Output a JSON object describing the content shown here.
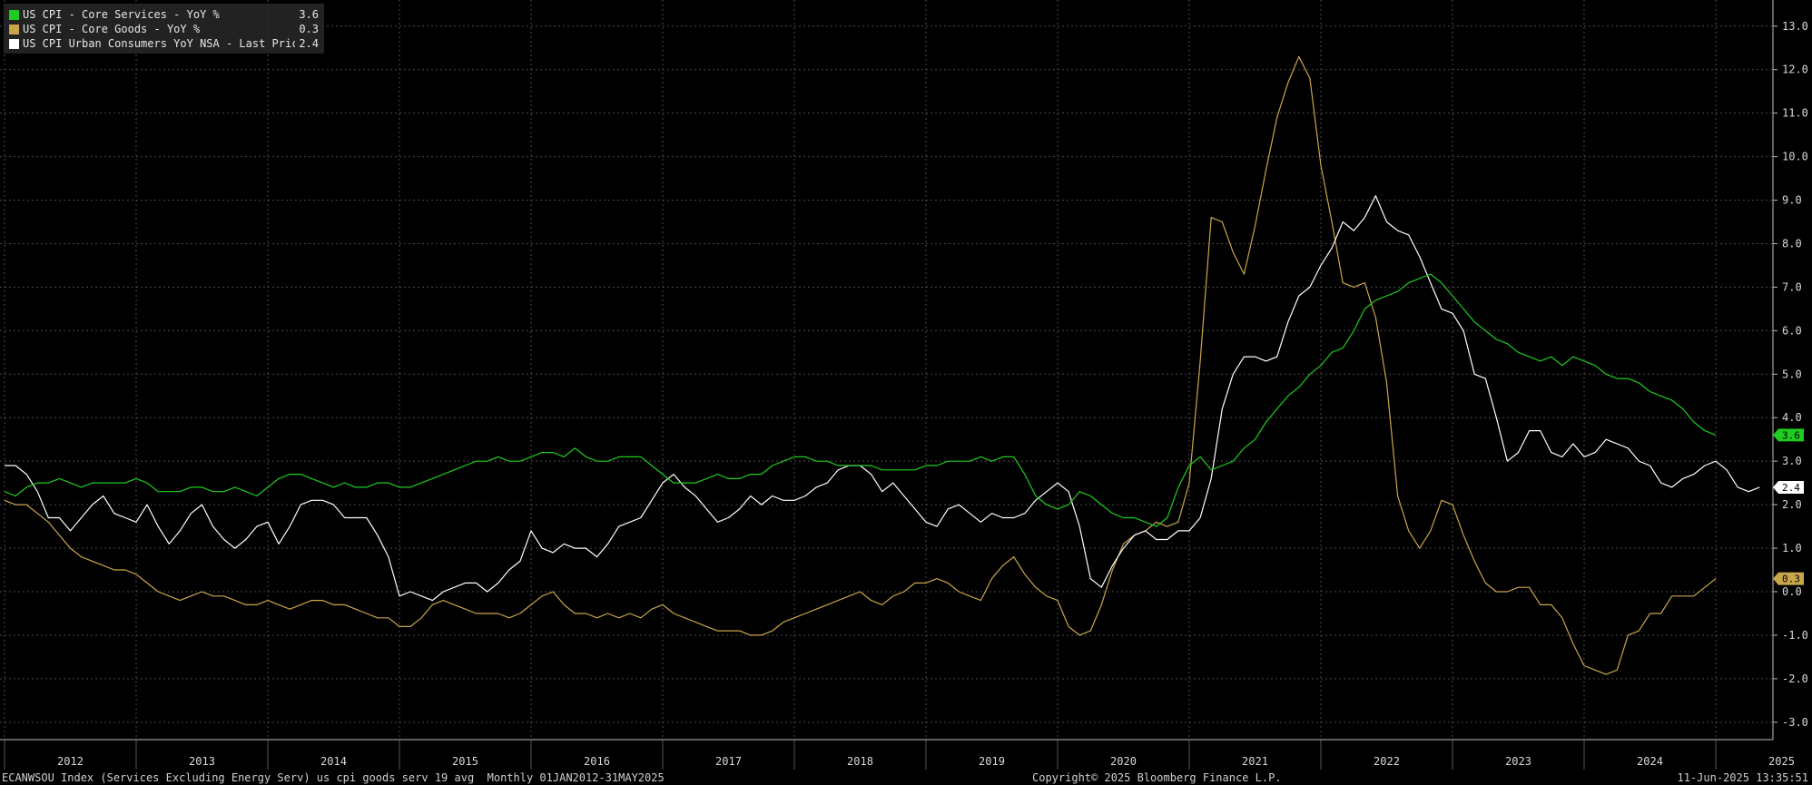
{
  "legend": [
    {
      "name": "US CPI - Core Services - YoY %",
      "value": "3.6",
      "color": "#1fcc1f"
    },
    {
      "name": "US CPI - Core Goods - YoY %",
      "value": "0.3",
      "color": "#c9a64a"
    },
    {
      "name": "US CPI Urban Consumers YoY NSA - Last Price",
      "value": "2.4",
      "color": "#ffffff"
    }
  ],
  "footer": {
    "left": "ECANWSOU Index (Services Excluding Energy Serv) us cpi goods serv 19 avg  Monthly 01JAN2012-31MAY2025",
    "center": "Copyright© 2025 Bloomberg Finance L.P.",
    "right": "11-Jun-2025 13:35:51"
  },
  "chart_data": {
    "type": "line",
    "start": "2012-01",
    "frequency": "monthly",
    "x_tick_labels": [
      "2012",
      "2013",
      "2014",
      "2015",
      "2016",
      "2017",
      "2018",
      "2019",
      "2020",
      "2021",
      "2022",
      "2023",
      "2024",
      "2025"
    ],
    "y_ticks": [
      -3,
      -2,
      -1,
      0,
      1,
      2,
      3,
      4,
      5,
      6,
      7,
      8,
      9,
      10,
      11,
      12,
      13
    ],
    "y_tick_labels": [
      "-3.0",
      "-2.0",
      "-1.0",
      "0.0",
      "1.0",
      "2.0",
      "3.0",
      "4.0",
      "5.0",
      "6.0",
      "7.0",
      "8.0",
      "9.0",
      "10.0",
      "11.0",
      "12.0",
      "13.0"
    ],
    "ylim": [
      -3.4,
      13.6
    ],
    "grid": true,
    "legend_position": "top-left",
    "series": [
      {
        "name": "US CPI - Core Services - YoY %",
        "color": "#1fcc1f",
        "last_label": "3.6",
        "values": [
          2.3,
          2.2,
          2.4,
          2.5,
          2.5,
          2.6,
          2.5,
          2.4,
          2.5,
          2.5,
          2.5,
          2.5,
          2.6,
          2.5,
          2.3,
          2.3,
          2.3,
          2.4,
          2.4,
          2.3,
          2.3,
          2.4,
          2.3,
          2.2,
          2.4,
          2.6,
          2.7,
          2.7,
          2.6,
          2.5,
          2.4,
          2.5,
          2.4,
          2.4,
          2.5,
          2.5,
          2.4,
          2.4,
          2.5,
          2.6,
          2.7,
          2.8,
          2.9,
          3.0,
          3.0,
          3.1,
          3.0,
          3.0,
          3.1,
          3.2,
          3.2,
          3.1,
          3.3,
          3.1,
          3.0,
          3.0,
          3.1,
          3.1,
          3.1,
          2.9,
          2.7,
          2.5,
          2.5,
          2.5,
          2.6,
          2.7,
          2.6,
          2.6,
          2.7,
          2.7,
          2.9,
          3.0,
          3.1,
          3.1,
          3.0,
          3.0,
          2.9,
          2.9,
          2.9,
          2.9,
          2.8,
          2.8,
          2.8,
          2.8,
          2.9,
          2.9,
          3.0,
          3.0,
          3.0,
          3.1,
          3.0,
          3.1,
          3.1,
          2.7,
          2.2,
          2.0,
          1.9,
          2.0,
          2.3,
          2.2,
          2.0,
          1.8,
          1.7,
          1.7,
          1.6,
          1.5,
          1.7,
          2.4,
          2.9,
          3.1,
          2.8,
          2.9,
          3.0,
          3.3,
          3.5,
          3.9,
          4.2,
          4.5,
          4.7,
          5.0,
          5.2,
          5.5,
          5.6,
          6.0,
          6.5,
          6.7,
          6.8,
          6.9,
          7.1,
          7.2,
          7.3,
          7.1,
          6.8,
          6.5,
          6.2,
          6.0,
          5.8,
          5.7,
          5.5,
          5.4,
          5.3,
          5.4,
          5.2,
          5.4,
          5.3,
          5.2,
          5.0,
          4.9,
          4.9,
          4.8,
          4.6,
          4.5,
          4.4,
          4.2,
          3.9,
          3.7,
          3.6
        ]
      },
      {
        "name": "US CPI - Core Goods - YoY %",
        "color": "#c9a64a",
        "last_label": "0.3",
        "values": [
          2.1,
          2.0,
          2.0,
          1.8,
          1.6,
          1.3,
          1.0,
          0.8,
          0.7,
          0.6,
          0.5,
          0.5,
          0.4,
          0.2,
          0.0,
          -0.1,
          -0.2,
          -0.1,
          0.0,
          -0.1,
          -0.1,
          -0.2,
          -0.3,
          -0.3,
          -0.2,
          -0.3,
          -0.4,
          -0.3,
          -0.2,
          -0.2,
          -0.3,
          -0.3,
          -0.4,
          -0.5,
          -0.6,
          -0.6,
          -0.8,
          -0.8,
          -0.6,
          -0.3,
          -0.2,
          -0.3,
          -0.4,
          -0.5,
          -0.5,
          -0.5,
          -0.6,
          -0.5,
          -0.3,
          -0.1,
          0.0,
          -0.3,
          -0.5,
          -0.5,
          -0.6,
          -0.5,
          -0.6,
          -0.5,
          -0.6,
          -0.4,
          -0.3,
          -0.5,
          -0.6,
          -0.7,
          -0.8,
          -0.9,
          -0.9,
          -0.9,
          -1.0,
          -1.0,
          -0.9,
          -0.7,
          -0.6,
          -0.5,
          -0.4,
          -0.3,
          -0.2,
          -0.1,
          0.0,
          -0.2,
          -0.3,
          -0.1,
          0.0,
          0.2,
          0.2,
          0.3,
          0.2,
          0.0,
          -0.1,
          -0.2,
          0.3,
          0.6,
          0.8,
          0.4,
          0.1,
          -0.1,
          -0.2,
          -0.8,
          -1.0,
          -0.9,
          -0.3,
          0.5,
          1.1,
          1.3,
          1.4,
          1.6,
          1.5,
          1.6,
          2.5,
          5.3,
          8.6,
          8.5,
          7.8,
          7.3,
          8.4,
          9.7,
          10.9,
          11.7,
          12.3,
          11.8,
          9.8,
          8.5,
          7.1,
          7.0,
          7.1,
          6.3,
          4.8,
          2.2,
          1.4,
          1.0,
          1.4,
          2.1,
          2.0,
          1.3,
          0.7,
          0.2,
          0.0,
          0.0,
          0.1,
          0.1,
          -0.3,
          -0.3,
          -0.6,
          -1.2,
          -1.7,
          -1.8,
          -1.9,
          -1.8,
          -1.0,
          -0.9,
          -0.5,
          -0.5,
          -0.1,
          -0.1,
          -0.1,
          0.1,
          0.3
        ]
      },
      {
        "name": "US CPI Urban Consumers YoY NSA - Last Price",
        "color": "#ffffff",
        "last_label": "2.4",
        "values": [
          2.9,
          2.9,
          2.7,
          2.3,
          1.7,
          1.7,
          1.4,
          1.7,
          2.0,
          2.2,
          1.8,
          1.7,
          1.6,
          2.0,
          1.5,
          1.1,
          1.4,
          1.8,
          2.0,
          1.5,
          1.2,
          1.0,
          1.2,
          1.5,
          1.6,
          1.1,
          1.5,
          2.0,
          2.1,
          2.1,
          2.0,
          1.7,
          1.7,
          1.7,
          1.3,
          0.8,
          -0.1,
          0.0,
          -0.1,
          -0.2,
          0.0,
          0.1,
          0.2,
          0.2,
          0.0,
          0.2,
          0.5,
          0.7,
          1.4,
          1.0,
          0.9,
          1.1,
          1.0,
          1.0,
          0.8,
          1.1,
          1.5,
          1.6,
          1.7,
          2.1,
          2.5,
          2.7,
          2.4,
          2.2,
          1.9,
          1.6,
          1.7,
          1.9,
          2.2,
          2.0,
          2.2,
          2.1,
          2.1,
          2.2,
          2.4,
          2.5,
          2.8,
          2.9,
          2.9,
          2.7,
          2.3,
          2.5,
          2.2,
          1.9,
          1.6,
          1.5,
          1.9,
          2.0,
          1.8,
          1.6,
          1.8,
          1.7,
          1.7,
          1.8,
          2.1,
          2.3,
          2.5,
          2.3,
          1.5,
          0.3,
          0.1,
          0.6,
          1.0,
          1.3,
          1.4,
          1.2,
          1.2,
          1.4,
          1.4,
          1.7,
          2.6,
          4.2,
          5.0,
          5.4,
          5.4,
          5.3,
          5.4,
          6.2,
          6.8,
          7.0,
          7.5,
          7.9,
          8.5,
          8.3,
          8.6,
          9.1,
          8.5,
          8.3,
          8.2,
          7.7,
          7.1,
          6.5,
          6.4,
          6.0,
          5.0,
          4.9,
          4.0,
          3.0,
          3.2,
          3.7,
          3.7,
          3.2,
          3.1,
          3.4,
          3.1,
          3.2,
          3.5,
          3.4,
          3.3,
          3.0,
          2.9,
          2.5,
          2.4,
          2.6,
          2.7,
          2.9,
          3.0,
          2.8,
          2.4,
          2.3,
          2.4
        ]
      }
    ]
  }
}
